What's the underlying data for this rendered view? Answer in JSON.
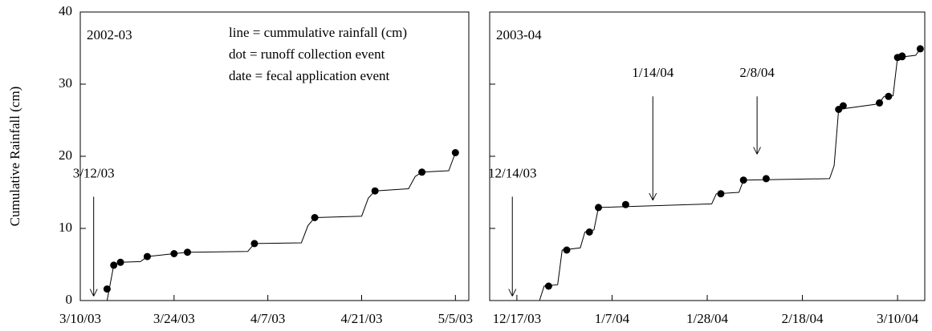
{
  "chart_data": [
    {
      "type": "line",
      "title": "2002-03",
      "y_label": "Cumulative Rainfall (cm)",
      "notes": [
        "line = cummulative rainfall (cm)",
        "dot = runoff collection event",
        "date = fecal application event"
      ],
      "xlim": [
        "2003-03-10",
        "2003-05-07"
      ],
      "xticks": [
        {
          "value": "2003-03-10",
          "label": "3/10/03"
        },
        {
          "value": "2003-03-24",
          "label": "3/24/03"
        },
        {
          "value": "2003-04-07",
          "label": "4/7/03"
        },
        {
          "value": "2003-04-21",
          "label": "4/21/03"
        },
        {
          "value": "2003-05-05",
          "label": "5/5/03"
        }
      ],
      "ylim": [
        0,
        40
      ],
      "yticks": [
        0,
        10,
        20,
        30,
        40
      ],
      "ytick_labels": true,
      "color": "#000000",
      "line": {
        "x": [
          "2003-03-14",
          "2003-03-15",
          "2003-03-16",
          "2003-03-19",
          "2003-03-20",
          "2003-03-24",
          "2003-03-26",
          "2003-04-04",
          "2003-04-05",
          "2003-04-12",
          "2003-04-13",
          "2003-04-14",
          "2003-04-21",
          "2003-04-22",
          "2003-04-23",
          "2003-04-28",
          "2003-04-29",
          "2003-04-30",
          "2003-05-04",
          "2003-05-05"
        ],
        "values": [
          0,
          4.9,
          5.3,
          5.4,
          6.1,
          6.5,
          6.7,
          6.8,
          7.9,
          8.0,
          10.4,
          11.5,
          11.7,
          14.2,
          15.2,
          15.5,
          17.2,
          17.8,
          18.0,
          20.5
        ]
      },
      "dots": {
        "x": [
          "2003-03-14",
          "2003-03-15",
          "2003-03-16",
          "2003-03-20",
          "2003-03-24",
          "2003-03-26",
          "2003-04-05",
          "2003-04-14",
          "2003-04-23",
          "2003-04-30",
          "2003-05-05"
        ],
        "values": [
          1.6,
          4.9,
          5.3,
          6.1,
          6.5,
          6.7,
          7.9,
          11.5,
          15.2,
          17.8,
          20.5
        ]
      },
      "annotations": [
        {
          "text": "3/12/03",
          "x": "2003-03-12",
          "y": 14.4,
          "y_end": 0.6
        }
      ]
    },
    {
      "type": "line",
      "title": "2003-04",
      "xlim": [
        "2003-12-11",
        "2004-03-16"
      ],
      "xticks": [
        {
          "value": "2003-12-17",
          "label": "12/17/03"
        },
        {
          "value": "2004-01-07",
          "label": "1/7/04"
        },
        {
          "value": "2004-01-28",
          "label": "1/28/04"
        },
        {
          "value": "2004-02-18",
          "label": "2/18/04"
        },
        {
          "value": "2004-03-10",
          "label": "3/10/04"
        }
      ],
      "ylim": [
        0,
        40
      ],
      "yticks": [
        0,
        10,
        20,
        30,
        40
      ],
      "ytick_labels": false,
      "color": "#000000",
      "line": {
        "x": [
          "2003-12-22",
          "2003-12-23",
          "2003-12-26",
          "2003-12-27",
          "2003-12-31",
          "2004-01-01",
          "2004-01-03",
          "2004-01-04",
          "2004-01-29",
          "2004-01-30",
          "2004-02-04",
          "2004-02-05",
          "2004-02-24",
          "2004-02-25",
          "2004-02-26",
          "2004-03-05",
          "2004-03-06",
          "2004-03-07",
          "2004-03-09",
          "2004-03-10",
          "2004-03-14",
          "2004-03-15"
        ],
        "values": [
          0,
          2.0,
          2.2,
          7.0,
          7.3,
          9.5,
          9.8,
          12.9,
          13.4,
          14.8,
          15.0,
          16.7,
          16.9,
          18.7,
          26.5,
          27.2,
          27.4,
          28.3,
          28.4,
          33.7,
          34.0,
          34.9
        ]
      },
      "dots": {
        "x": [
          "2003-12-24",
          "2003-12-28",
          "2004-01-02",
          "2004-01-04",
          "2004-01-10",
          "2004-01-31",
          "2004-02-05",
          "2004-02-10",
          "2004-02-26",
          "2004-02-27",
          "2004-03-06",
          "2004-03-08",
          "2004-03-10",
          "2004-03-11",
          "2004-03-11",
          "2004-03-15"
        ],
        "values": [
          2.0,
          7.0,
          9.5,
          12.9,
          13.3,
          14.8,
          16.7,
          16.9,
          26.5,
          27.0,
          27.4,
          28.3,
          33.7,
          33.8,
          33.9,
          34.9
        ]
      },
      "annotations": [
        {
          "text": "12/14/03",
          "x": "2003-12-16",
          "y": 14.4,
          "y_end": 0.6
        },
        {
          "text": "1/14/04",
          "x": "2004-01-16",
          "y": 28.3,
          "y_end": 13.9
        },
        {
          "text": "2/8/04",
          "x": "2004-02-08",
          "y": 28.3,
          "y_end": 20.3
        }
      ]
    }
  ]
}
